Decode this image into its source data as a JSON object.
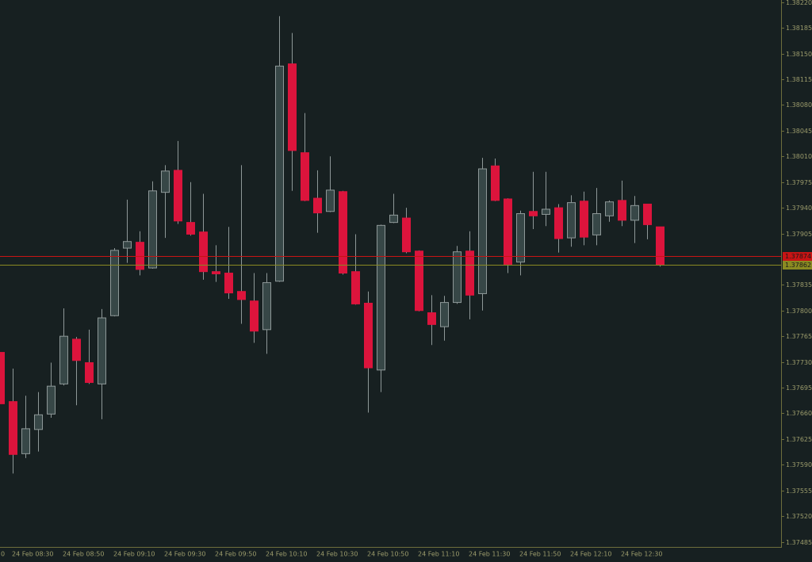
{
  "chart_data": {
    "type": "candlestick",
    "categories": [
      "0",
      "24 Feb 08:30",
      null,
      null,
      null,
      "24 Feb 08:50",
      null,
      null,
      null,
      "24 Feb 09:10",
      null,
      null,
      null,
      "24 Feb 09:30",
      null,
      null,
      null,
      "24 Feb 09:50",
      null,
      null,
      null,
      "24 Feb 10:10",
      null,
      null,
      null,
      "24 Feb 10:30",
      null,
      null,
      null,
      "24 Feb 10:50",
      null,
      null,
      null,
      "24 Feb 11:10",
      null,
      null,
      null,
      "24 Feb 11:30",
      null,
      null,
      null,
      "24 Feb 11:50",
      null,
      null,
      null,
      "24 Feb 12:10",
      null,
      null,
      null,
      "24 Feb 12:30",
      null,
      null,
      null
    ],
    "open": [
      1.37743,
      1.37676,
      1.37605,
      1.37638,
      1.37659,
      1.377,
      1.37761,
      1.37729,
      1.377,
      1.37793,
      1.37885,
      1.37893,
      1.37858,
      1.37961,
      1.37991,
      1.3792,
      1.37907,
      1.37853,
      1.37851,
      1.37826,
      1.37813,
      1.37774,
      1.3784,
      1.38136,
      1.38015,
      1.37953,
      1.37935,
      1.37962,
      1.37853,
      1.3781,
      1.37719,
      1.3792,
      1.37926,
      1.37881,
      1.37797,
      1.37778,
      1.37811,
      1.37881,
      1.37823,
      1.37997,
      1.37952,
      1.37866,
      1.37935,
      1.37931,
      1.3794,
      1.37899,
      1.37949,
      1.37903,
      1.37929,
      1.3795,
      1.37923,
      1.37945,
      1.37914
    ],
    "high": [
      1.37743,
      1.37721,
      1.37684,
      1.37689,
      1.37729,
      1.37803,
      1.37764,
      1.37774,
      1.37802,
      1.37885,
      1.37951,
      1.37908,
      1.37976,
      1.37998,
      1.38031,
      1.37975,
      1.37959,
      1.37889,
      1.37914,
      1.37998,
      1.37851,
      1.37851,
      1.38201,
      1.38178,
      1.38069,
      1.37991,
      1.3801,
      1.37963,
      1.37904,
      1.37826,
      1.37917,
      1.37959,
      1.3794,
      1.37882,
      1.37821,
      1.3782,
      1.37888,
      1.37908,
      1.38008,
      1.38007,
      1.37953,
      1.37936,
      1.37989,
      1.37989,
      1.37945,
      1.37957,
      1.37962,
      1.37967,
      1.3795,
      1.37977,
      1.37956,
      1.37945,
      1.37914
    ],
    "low": [
      1.37673,
      1.37578,
      1.37599,
      1.37608,
      1.37654,
      1.37698,
      1.37671,
      1.377,
      1.37652,
      1.37792,
      1.37865,
      1.37848,
      1.37857,
      1.37899,
      1.37918,
      1.37902,
      1.37842,
      1.37839,
      1.37816,
      1.37782,
      1.37756,
      1.37741,
      1.37839,
      1.37963,
      1.37949,
      1.37906,
      1.37934,
      1.37849,
      1.37808,
      1.37661,
      1.37689,
      1.37919,
      1.37878,
      1.37799,
      1.37753,
      1.37759,
      1.37809,
      1.37788,
      1.378,
      1.37949,
      1.37851,
      1.37848,
      1.37911,
      1.37915,
      1.37879,
      1.37887,
      1.37889,
      1.37889,
      1.37921,
      1.37915,
      1.37892,
      1.37897,
      1.3786
    ],
    "close": [
      1.37673,
      1.37604,
      1.37639,
      1.37658,
      1.37697,
      1.37765,
      1.37732,
      1.37702,
      1.3779,
      1.37882,
      1.37894,
      1.37856,
      1.37963,
      1.3799,
      1.37922,
      1.37904,
      1.37853,
      1.3785,
      1.37824,
      1.37815,
      1.37772,
      1.37838,
      1.38133,
      1.38018,
      1.3795,
      1.37933,
      1.37964,
      1.37851,
      1.37809,
      1.37722,
      1.37916,
      1.3793,
      1.3788,
      1.378,
      1.37781,
      1.37811,
      1.3788,
      1.37821,
      1.37993,
      1.3795,
      1.37863,
      1.37932,
      1.37929,
      1.37938,
      1.37898,
      1.37947,
      1.379,
      1.37932,
      1.37948,
      1.37923,
      1.37943,
      1.37917,
      1.37862
    ],
    "up_color": "#374747",
    "down_color": "#dc143c",
    "ylim": [
      1.37478,
      1.38223
    ],
    "yticks": [
      1.37485,
      {
        "value": 1.3752,
        "label": "1.37520"
      },
      1.37555,
      {
        "value": 1.3759,
        "label": "1.37590"
      },
      1.37625,
      {
        "value": 1.3766,
        "label": "1.37660"
      },
      1.37695,
      {
        "value": 1.3773,
        "label": "1.37730"
      },
      1.37765,
      {
        "value": 1.378,
        "label": "1.37800"
      },
      1.37835,
      1.37905,
      {
        "value": 1.3794,
        "label": "1.37940"
      },
      1.37975,
      {
        "value": 1.3801,
        "label": "1.38010"
      },
      1.38045,
      {
        "value": 1.3808,
        "label": "1.38080"
      },
      1.38115,
      {
        "value": 1.3815,
        "label": "1.38150"
      },
      1.38185,
      {
        "value": 1.3822,
        "label": "1.38220"
      }
    ],
    "price_lines": [
      {
        "value": 1.37874,
        "color": "#c81414"
      },
      {
        "value": 1.37862,
        "color": "#8a8a22"
      }
    ]
  }
}
